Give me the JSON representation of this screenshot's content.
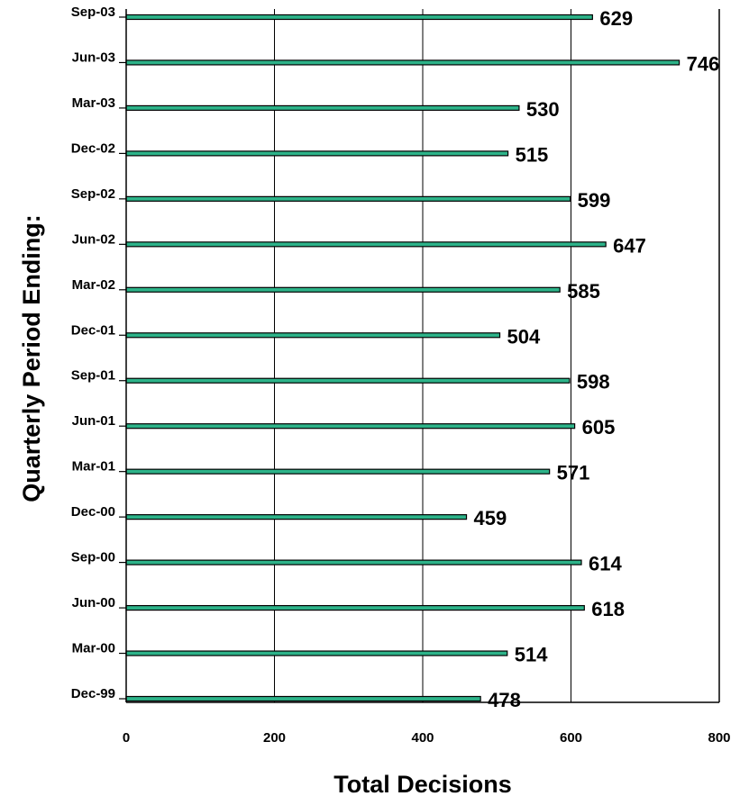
{
  "chart_data": {
    "type": "bar",
    "orientation": "horizontal",
    "categories": [
      "Dec-99",
      "Mar-00",
      "Jun-00",
      "Sep-00",
      "Dec-00",
      "Mar-01",
      "Jun-01",
      "Sep-01",
      "Dec-01",
      "Mar-02",
      "Jun-02",
      "Sep-02",
      "Dec-02",
      "Mar-03",
      "Jun-03",
      "Sep-03"
    ],
    "values": [
      478,
      514,
      618,
      614,
      459,
      571,
      605,
      598,
      504,
      585,
      647,
      599,
      515,
      530,
      746,
      629
    ],
    "xlabel": "Total Decisions",
    "ylabel": "Quarterly Period Ending:",
    "xlim": [
      0,
      800
    ],
    "xticks": [
      0,
      200,
      400,
      600,
      800
    ],
    "grid": "vertical",
    "legend": "none",
    "colors": {
      "bar_fill": "#2db389",
      "bar_edge": "#000000",
      "grid": "#000000"
    }
  }
}
